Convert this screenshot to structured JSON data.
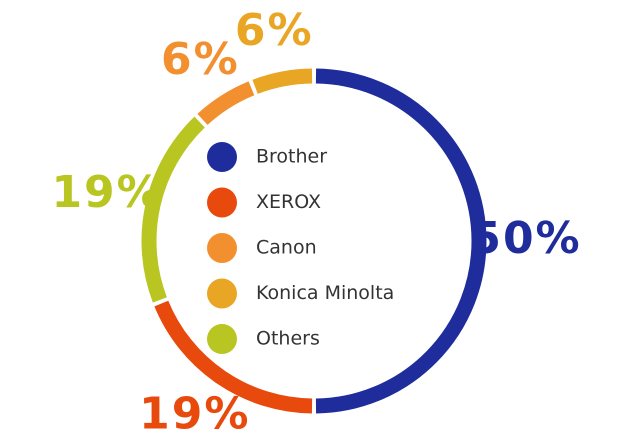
{
  "chart_data": {
    "type": "donut",
    "categories": [
      "Brother",
      "XEROX",
      "Canon",
      "Konica Minolta",
      "Others"
    ],
    "values": [
      50,
      19,
      6,
      6,
      19
    ],
    "value_labels": [
      "50%",
      "19%",
      "6%",
      "6%",
      "19%"
    ],
    "colors": [
      "#1f2d9c",
      "#e84a0e",
      "#f28f2e",
      "#e9a524",
      "#b9c520"
    ]
  }
}
